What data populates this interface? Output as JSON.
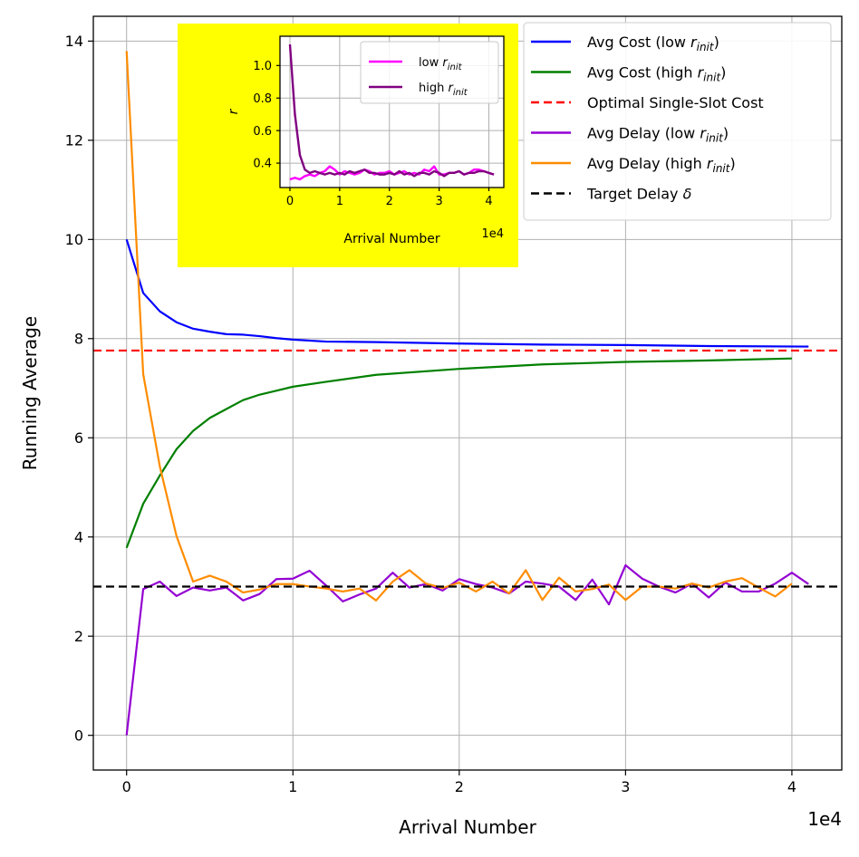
{
  "chart_data": [
    {
      "type": "line",
      "title": "",
      "xlabel": "Arrival Number",
      "ylabel": "Running Average",
      "x_offset_label": "1e4",
      "xlim": [
        -0.2,
        4.3
      ],
      "ylim": [
        -0.7,
        14.5
      ],
      "xticks": [
        0,
        1,
        2,
        3,
        4
      ],
      "yticks": [
        0,
        2,
        4,
        6,
        8,
        10,
        12,
        14
      ],
      "grid": true,
      "legend_position": "top-right",
      "series": [
        {
          "name": "Avg Cost (low r_init)",
          "color": "#0000ff",
          "style": "solid",
          "x": [
            0,
            0.1,
            0.2,
            0.3,
            0.4,
            0.5,
            0.6,
            0.7,
            0.8,
            0.9,
            1.0,
            1.2,
            1.5,
            2.0,
            2.5,
            3.0,
            3.5,
            4.1
          ],
          "y": [
            10.0,
            8.92,
            8.55,
            8.33,
            8.2,
            8.14,
            8.09,
            8.08,
            8.05,
            8.01,
            7.98,
            7.94,
            7.93,
            7.9,
            7.88,
            7.87,
            7.85,
            7.84
          ]
        },
        {
          "name": "Avg Cost (high r_init)",
          "color": "#008000",
          "style": "solid",
          "x": [
            0,
            0.1,
            0.2,
            0.3,
            0.4,
            0.5,
            0.6,
            0.7,
            0.8,
            0.9,
            1.0,
            1.2,
            1.5,
            2.0,
            2.5,
            3.0,
            3.5,
            4.0
          ],
          "y": [
            3.78,
            4.67,
            5.24,
            5.77,
            6.14,
            6.4,
            6.58,
            6.76,
            6.87,
            6.95,
            7.03,
            7.13,
            7.27,
            7.39,
            7.48,
            7.53,
            7.56,
            7.6
          ]
        },
        {
          "name": "Optimal Single-Slot Cost",
          "color": "#ff0000",
          "style": "dashed",
          "x": [
            -0.2,
            4.3
          ],
          "y": [
            7.76,
            7.76
          ]
        },
        {
          "name": "Avg Delay (low r_init)",
          "color": "#9400d3",
          "style": "solid",
          "x": [
            0,
            0.1,
            0.2,
            0.3,
            0.4,
            0.5,
            0.6,
            0.7,
            0.8,
            0.9,
            1.0,
            1.1,
            1.2,
            1.3,
            1.4,
            1.5,
            1.6,
            1.7,
            1.8,
            1.9,
            2.0,
            2.1,
            2.2,
            2.3,
            2.4,
            2.5,
            2.6,
            2.7,
            2.8,
            2.9,
            3.0,
            3.1,
            3.2,
            3.3,
            3.4,
            3.5,
            3.6,
            3.7,
            3.8,
            3.9,
            4.0,
            4.1
          ],
          "y": [
            0.0,
            2.95,
            3.1,
            2.81,
            2.98,
            2.92,
            2.98,
            2.72,
            2.85,
            3.15,
            3.16,
            3.32,
            3.02,
            2.7,
            2.84,
            2.96,
            3.28,
            2.98,
            3.05,
            2.92,
            3.15,
            3.05,
            2.98,
            2.86,
            3.1,
            3.06,
            3.0,
            2.73,
            3.14,
            2.64,
            3.43,
            3.16,
            3.0,
            2.88,
            3.06,
            2.78,
            3.08,
            2.9,
            2.9,
            3.06,
            3.28,
            3.05
          ]
        },
        {
          "name": "Avg Delay (high r_init)",
          "color": "#ff8c00",
          "style": "solid",
          "x": [
            0,
            0.1,
            0.2,
            0.3,
            0.4,
            0.5,
            0.6,
            0.7,
            0.8,
            0.9,
            1.0,
            1.1,
            1.2,
            1.3,
            1.4,
            1.5,
            1.6,
            1.7,
            1.8,
            1.9,
            2.0,
            2.1,
            2.2,
            2.3,
            2.4,
            2.5,
            2.6,
            2.7,
            2.8,
            2.9,
            3.0,
            3.1,
            3.2,
            3.3,
            3.4,
            3.5,
            3.6,
            3.7,
            3.8,
            3.9,
            4.0
          ],
          "y": [
            13.8,
            7.28,
            5.42,
            4.02,
            3.1,
            3.22,
            3.1,
            2.88,
            2.94,
            3.05,
            3.05,
            3.0,
            2.96,
            2.9,
            2.96,
            2.72,
            3.1,
            3.33,
            3.06,
            2.97,
            3.08,
            2.9,
            3.1,
            2.86,
            3.33,
            2.73,
            3.18,
            2.9,
            2.95,
            3.04,
            2.73,
            3.0,
            3.0,
            2.96,
            3.06,
            2.98,
            3.1,
            3.17,
            2.98,
            2.8,
            3.06
          ]
        },
        {
          "name": "Target Delay δ",
          "color": "#000000",
          "style": "dashed",
          "x": [
            -0.2,
            4.3
          ],
          "y": [
            3.0,
            3.0
          ]
        }
      ]
    },
    {
      "type": "line",
      "title": "",
      "xlabel": "Arrival Number",
      "ylabel": "r",
      "x_offset_label": "1e4",
      "xlim": [
        -0.2,
        4.3
      ],
      "ylim": [
        0.25,
        1.18
      ],
      "xticks": [
        0,
        1,
        2,
        3,
        4
      ],
      "yticks": [
        0.4,
        0.6,
        0.8,
        1.0
      ],
      "grid": true,
      "background": "#ffff00",
      "legend_position": "top-right",
      "series": [
        {
          "name": "low r_init",
          "color": "#ff00ff",
          "style": "solid",
          "x": [
            0,
            0.1,
            0.2,
            0.3,
            0.4,
            0.5,
            0.6,
            0.7,
            0.8,
            0.9,
            1.0,
            1.1,
            1.2,
            1.3,
            1.4,
            1.5,
            1.6,
            1.7,
            1.8,
            1.9,
            2.0,
            2.1,
            2.2,
            2.3,
            2.4,
            2.5,
            2.6,
            2.7,
            2.8,
            2.9,
            3.0,
            3.1,
            3.2,
            3.3,
            3.4,
            3.5,
            3.6,
            3.7,
            3.8,
            3.9,
            4.0,
            4.1
          ],
          "y": [
            0.3,
            0.31,
            0.3,
            0.32,
            0.33,
            0.32,
            0.34,
            0.35,
            0.38,
            0.36,
            0.33,
            0.35,
            0.34,
            0.33,
            0.34,
            0.36,
            0.35,
            0.33,
            0.34,
            0.34,
            0.35,
            0.33,
            0.34,
            0.35,
            0.33,
            0.34,
            0.33,
            0.36,
            0.35,
            0.38,
            0.33,
            0.33,
            0.34,
            0.34,
            0.35,
            0.33,
            0.34,
            0.36,
            0.36,
            0.35,
            0.34,
            0.33
          ]
        },
        {
          "name": "high r_init",
          "color": "#800080",
          "style": "solid",
          "x": [
            0,
            0.1,
            0.2,
            0.3,
            0.4,
            0.5,
            0.6,
            0.7,
            0.8,
            0.9,
            1.0,
            1.1,
            1.2,
            1.3,
            1.4,
            1.5,
            1.6,
            1.7,
            1.8,
            1.9,
            2.0,
            2.1,
            2.2,
            2.3,
            2.4,
            2.5,
            2.6,
            2.7,
            2.8,
            2.9,
            3.0,
            3.1,
            3.2,
            3.3,
            3.4,
            3.5,
            3.6,
            3.7,
            3.8,
            3.9,
            4.0,
            4.1
          ],
          "y": [
            1.13,
            0.7,
            0.45,
            0.36,
            0.34,
            0.35,
            0.34,
            0.33,
            0.34,
            0.33,
            0.34,
            0.33,
            0.35,
            0.34,
            0.35,
            0.36,
            0.34,
            0.34,
            0.33,
            0.33,
            0.34,
            0.33,
            0.35,
            0.33,
            0.34,
            0.32,
            0.34,
            0.34,
            0.33,
            0.35,
            0.34,
            0.32,
            0.34,
            0.34,
            0.35,
            0.33,
            0.34,
            0.34,
            0.35,
            0.35,
            0.34,
            0.33
          ]
        }
      ]
    }
  ],
  "legend_main": [
    {
      "base": "Avg Cost (low ",
      "var": "r",
      "sub": "init",
      "tail": ")",
      "color": "#0000ff",
      "dashed": false
    },
    {
      "base": "Avg Cost (high ",
      "var": "r",
      "sub": "init",
      "tail": ")",
      "color": "#008000",
      "dashed": false
    },
    {
      "base": "Optimal Single-Slot Cost",
      "var": "",
      "sub": "",
      "tail": "",
      "color": "#ff0000",
      "dashed": true
    },
    {
      "base": "Avg Delay (low ",
      "var": "r",
      "sub": "init",
      "tail": ")",
      "color": "#9400d3",
      "dashed": false
    },
    {
      "base": "Avg Delay (high ",
      "var": "r",
      "sub": "init",
      "tail": ")",
      "color": "#ff8c00",
      "dashed": false
    },
    {
      "base": "Target Delay ",
      "var": "δ",
      "sub": "",
      "tail": "",
      "color": "#000000",
      "dashed": true
    }
  ],
  "legend_inset": [
    {
      "base": "low ",
      "var": "r",
      "sub": "init",
      "tail": "",
      "color": "#ff00ff",
      "dashed": false
    },
    {
      "base": "high ",
      "var": "r",
      "sub": "init",
      "tail": "",
      "color": "#800080",
      "dashed": false
    }
  ]
}
